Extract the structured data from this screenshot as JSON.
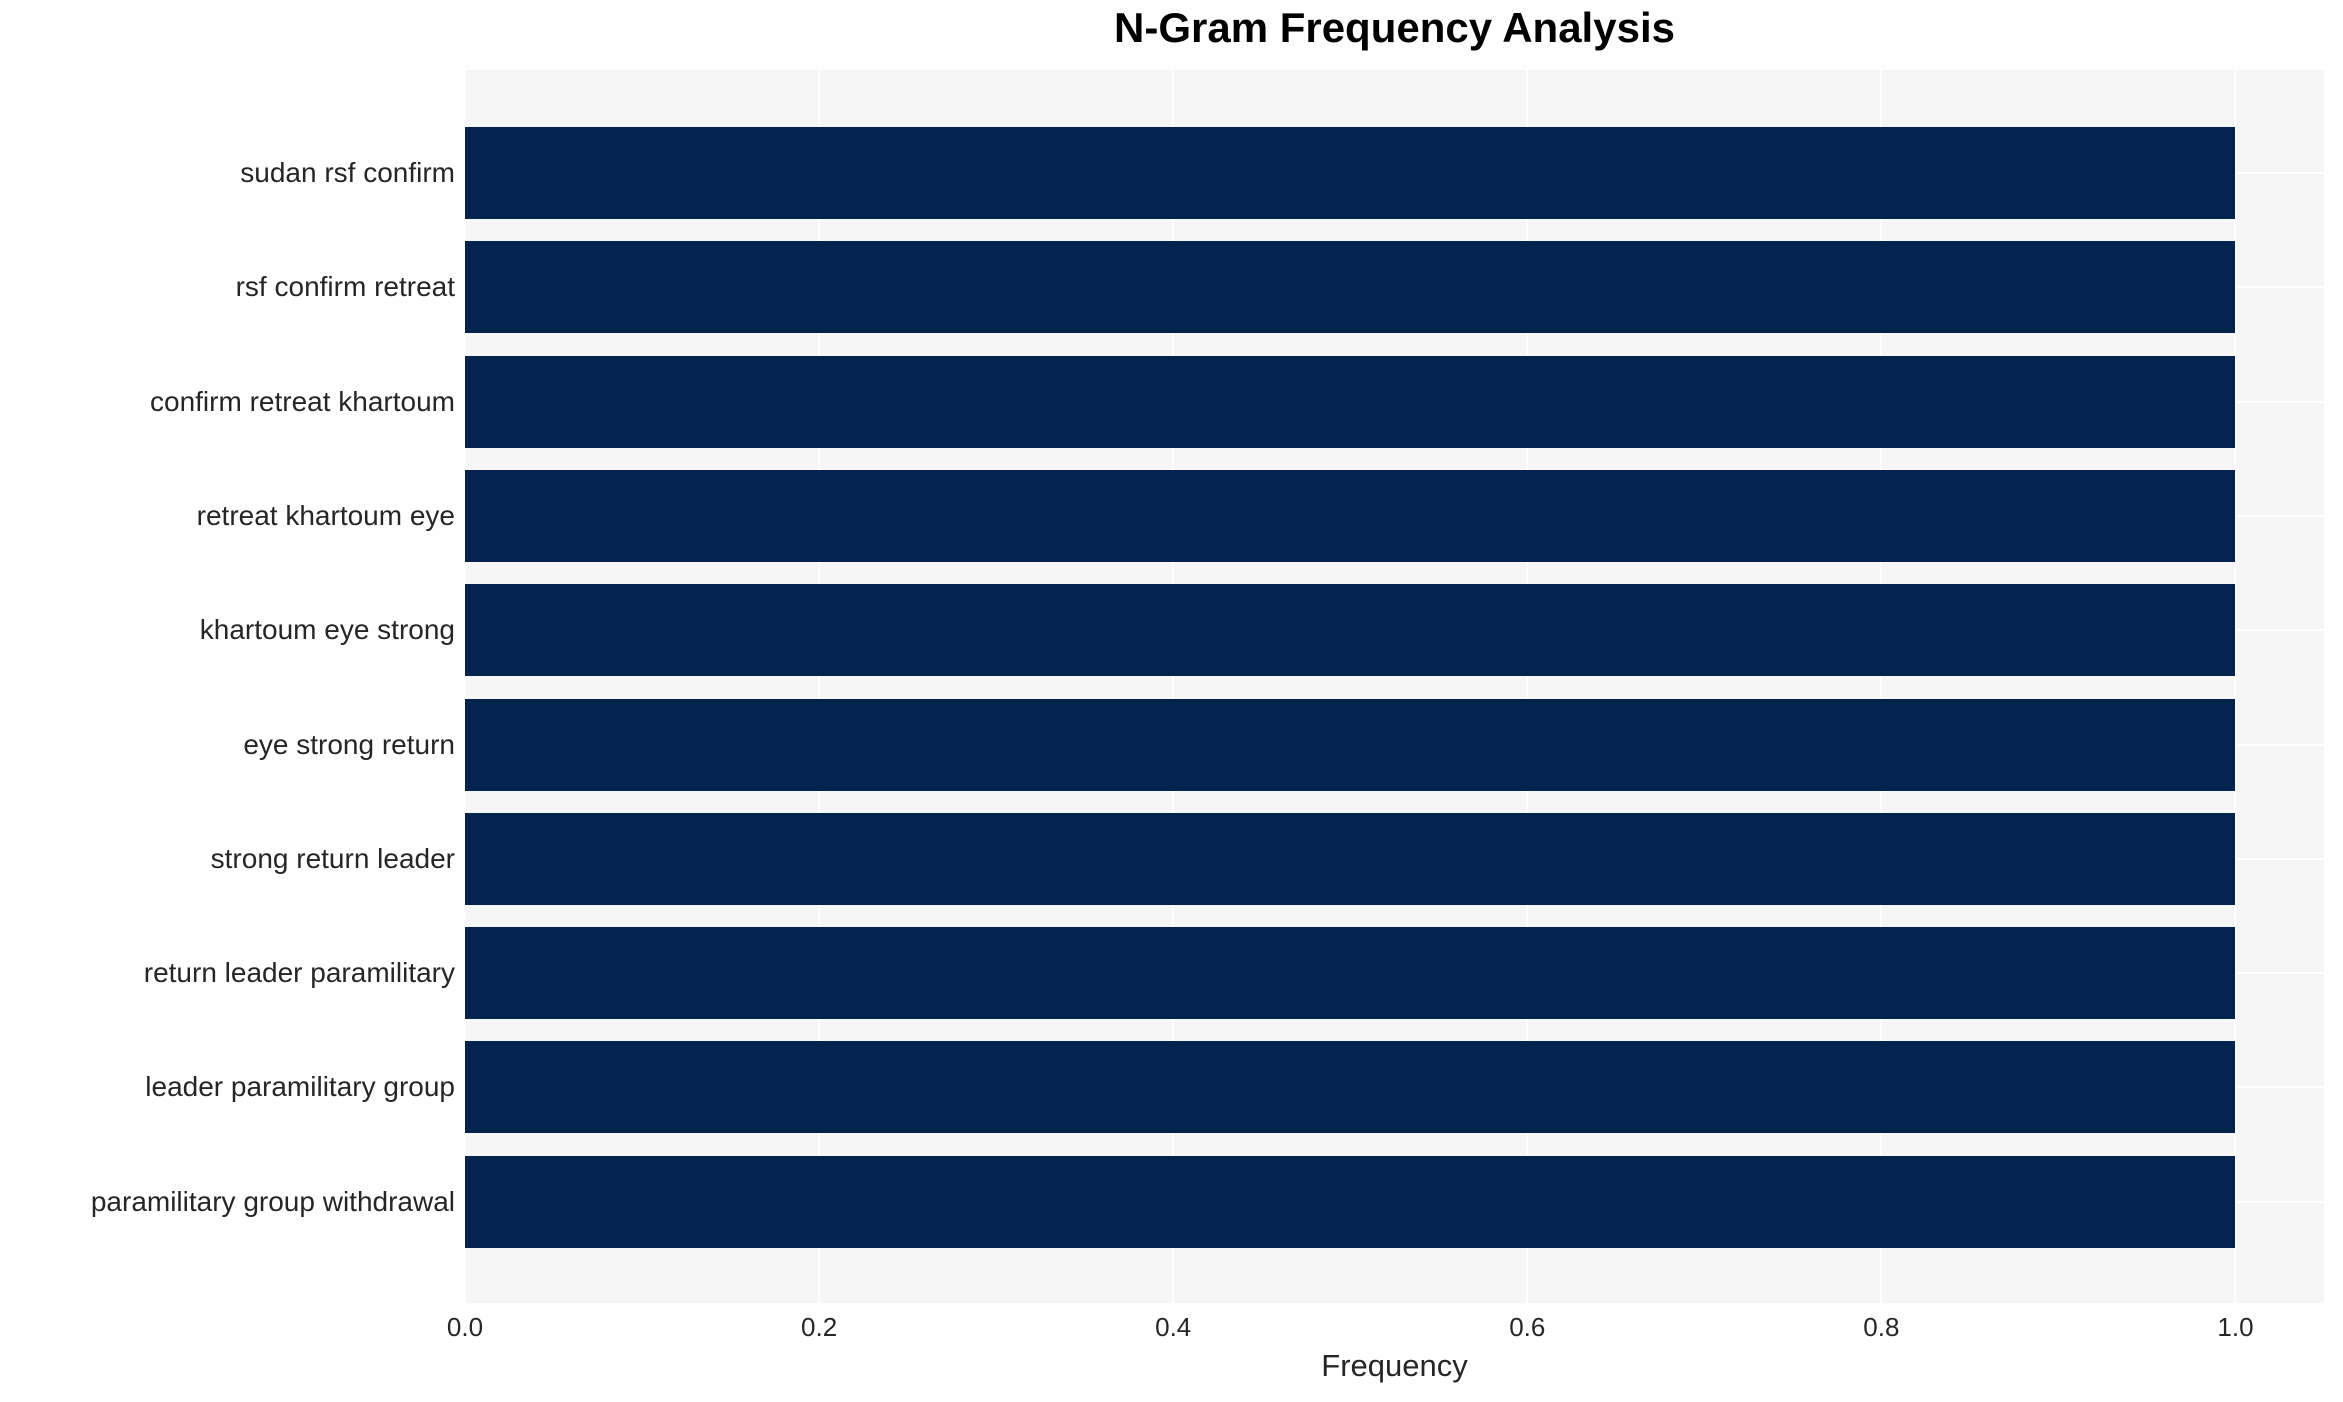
{
  "chart_data": {
    "type": "bar",
    "orientation": "horizontal",
    "title": "N-Gram Frequency Analysis",
    "xlabel": "Frequency",
    "ylabel": "",
    "categories": [
      "sudan rsf confirm",
      "rsf confirm retreat",
      "confirm retreat khartoum",
      "retreat khartoum eye",
      "khartoum eye strong",
      "eye strong return",
      "strong return leader",
      "return leader paramilitary",
      "leader paramilitary group",
      "paramilitary group withdrawal"
    ],
    "values": [
      1.0,
      1.0,
      1.0,
      1.0,
      1.0,
      1.0,
      1.0,
      1.0,
      1.0,
      1.0
    ],
    "xlim": [
      0,
      1.05
    ],
    "xticks": [
      0.0,
      0.2,
      0.4,
      0.6,
      0.8,
      1.0
    ],
    "xtick_labels": [
      "0.0",
      "0.2",
      "0.4",
      "0.6",
      "0.8",
      "1.0"
    ],
    "grid": true,
    "legend": false,
    "colors": {
      "bar": "#02234d",
      "plot_background": "#f6f6f7",
      "gridline": "#ffffff",
      "tick_text": "#262626",
      "title_text": "#000000",
      "figure_background": "#ffffff"
    }
  }
}
